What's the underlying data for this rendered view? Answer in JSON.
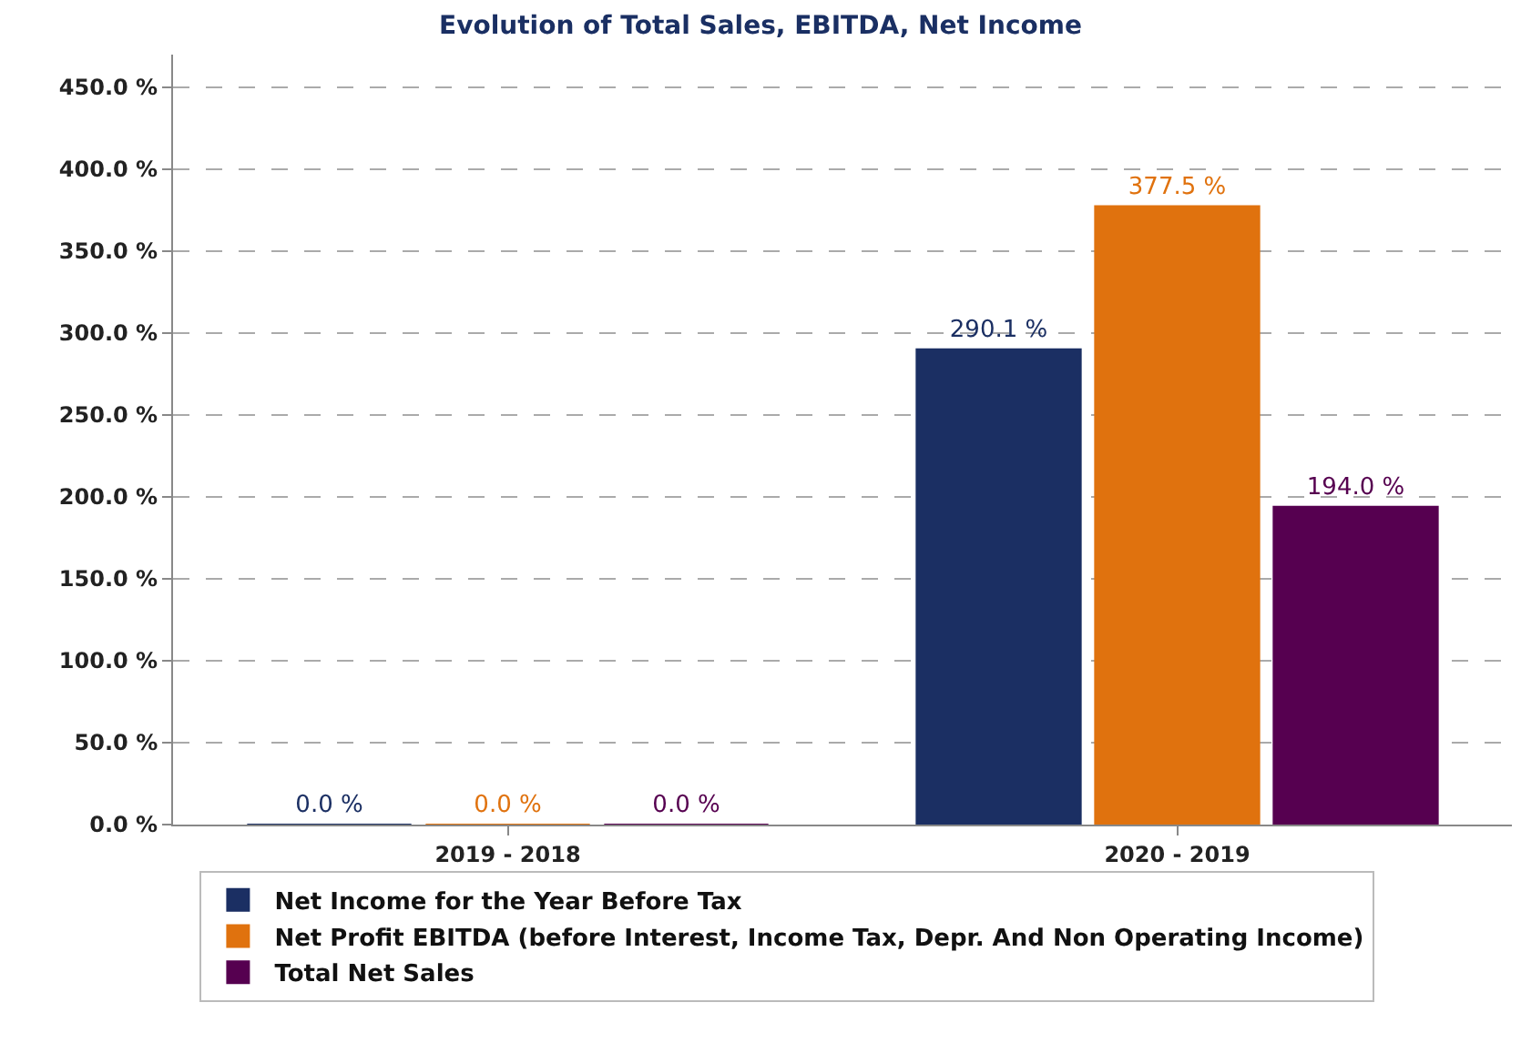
{
  "chart_data": {
    "type": "bar",
    "title": "Evolution of Total Sales, EBITDA, Net Income",
    "categories": [
      "2019 - 2018",
      "2020 - 2019"
    ],
    "series": [
      {
        "name": "Net Income for the Year Before Tax",
        "color": "#1b2f63",
        "values": [
          0.0,
          290.1
        ],
        "value_labels": [
          "0.0 %",
          "290.1 %"
        ]
      },
      {
        "name": "Net Profit EBITDA (before Interest, Income Tax, Depr. And Non Operating Income)",
        "color": "#e0720e",
        "values": [
          0.0,
          377.5
        ],
        "value_labels": [
          "0.0 %",
          "377.5 %"
        ]
      },
      {
        "name": "Total Net Sales",
        "color": "#560050",
        "values": [
          0.0,
          194.0
        ],
        "value_labels": [
          "0.0 %",
          "194.0 %"
        ]
      }
    ],
    "ylim": [
      0,
      470
    ],
    "yticks": [
      {
        "value": 0,
        "label": "0.0 %"
      },
      {
        "value": 50,
        "label": "50.0 %"
      },
      {
        "value": 100,
        "label": "100.0 %"
      },
      {
        "value": 150,
        "label": "150.0 %"
      },
      {
        "value": 200,
        "label": "200.0 %"
      },
      {
        "value": 250,
        "label": "250.0 %"
      },
      {
        "value": 300,
        "label": "300.0 %"
      },
      {
        "value": 350,
        "label": "350.0 %"
      },
      {
        "value": 400,
        "label": "400.0 %"
      },
      {
        "value": 450,
        "label": "450.0 %"
      }
    ],
    "grid": "y",
    "legend": "bottom"
  }
}
